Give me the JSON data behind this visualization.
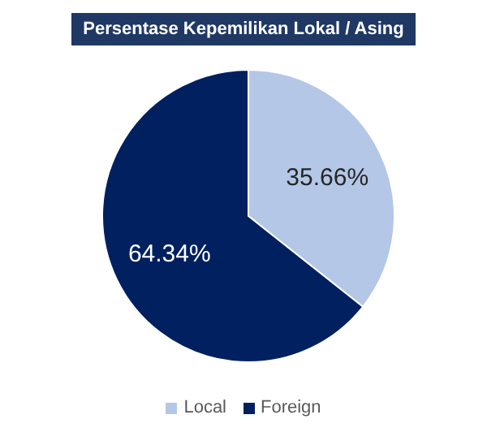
{
  "chart_data": {
    "type": "pie",
    "title": "Persentase Kepemilikan Lokal / Asing",
    "categories": [
      "Local",
      "Foreign"
    ],
    "values": [
      35.66,
      64.34
    ],
    "colors": [
      "#b4c7e7",
      "#002060"
    ],
    "value_labels": [
      "35.66%",
      "64.34%"
    ],
    "legend": "bottom"
  }
}
